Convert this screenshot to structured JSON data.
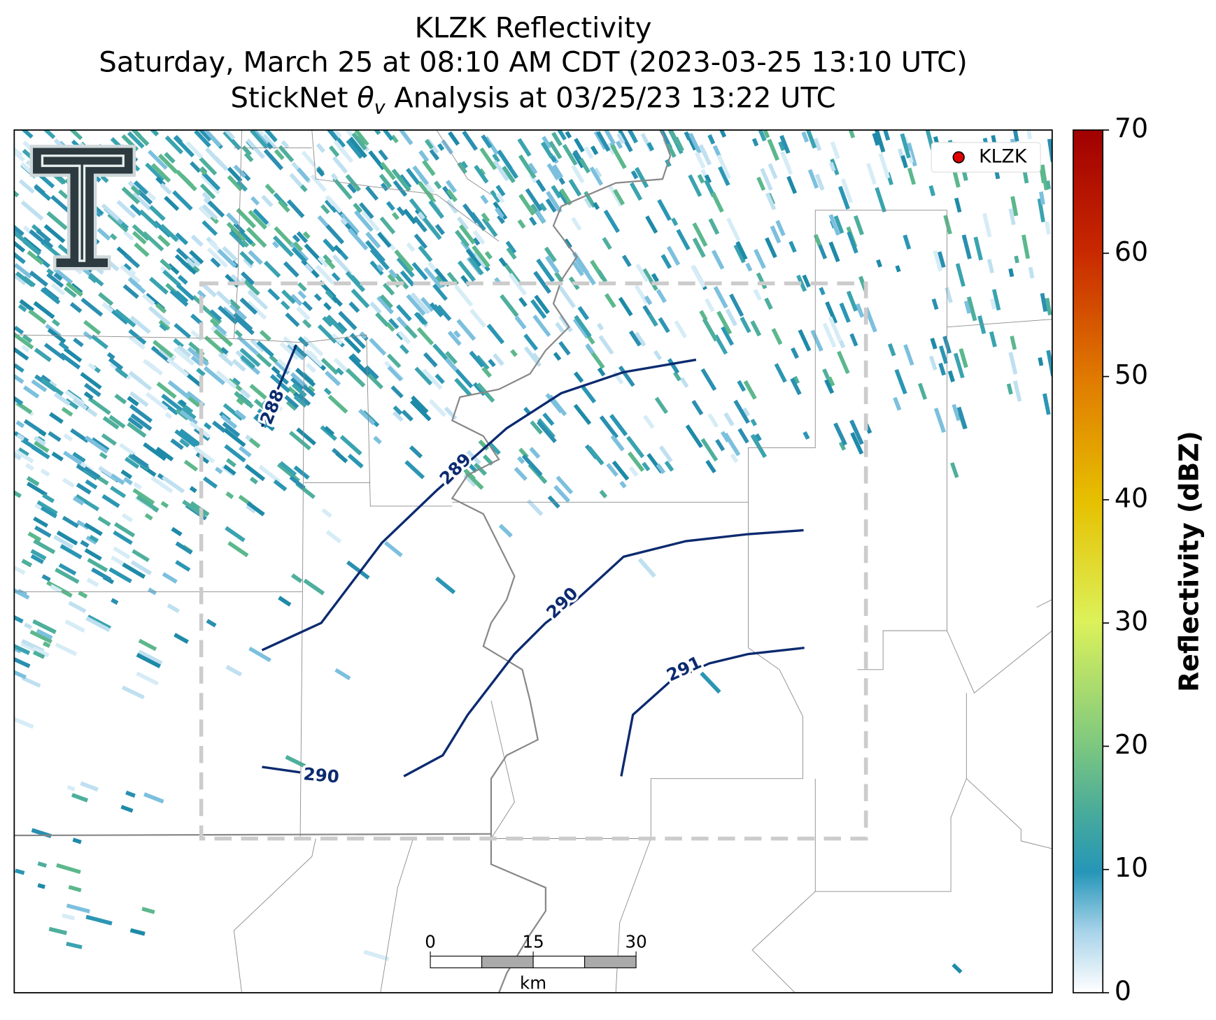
{
  "title": {
    "line1": "KLZK Reflectivity",
    "line2": "Saturday, March 25 at 08:10 AM CDT (2023-03-25 13:10 UTC)",
    "line3": {
      "before": "StickNet ",
      "symbol": "θ",
      "subscript": "v",
      "after": " Analysis at 03/25/23 13:22 UTC"
    }
  },
  "legend": {
    "label": "KLZK",
    "color": "#e00000"
  },
  "colorbar": {
    "label": "Reflectivity (dBZ)",
    "lim": [
      0,
      70
    ],
    "ticks": [
      0,
      10,
      20,
      30,
      40,
      50,
      60,
      70
    ]
  },
  "contours": [
    {
      "value": 288
    },
    {
      "value": 289
    },
    {
      "value": 290
    },
    {
      "value": 290
    },
    {
      "value": 291
    }
  ],
  "scale_bar": {
    "ticks": [
      0,
      15,
      30
    ],
    "unit": "km"
  }
}
